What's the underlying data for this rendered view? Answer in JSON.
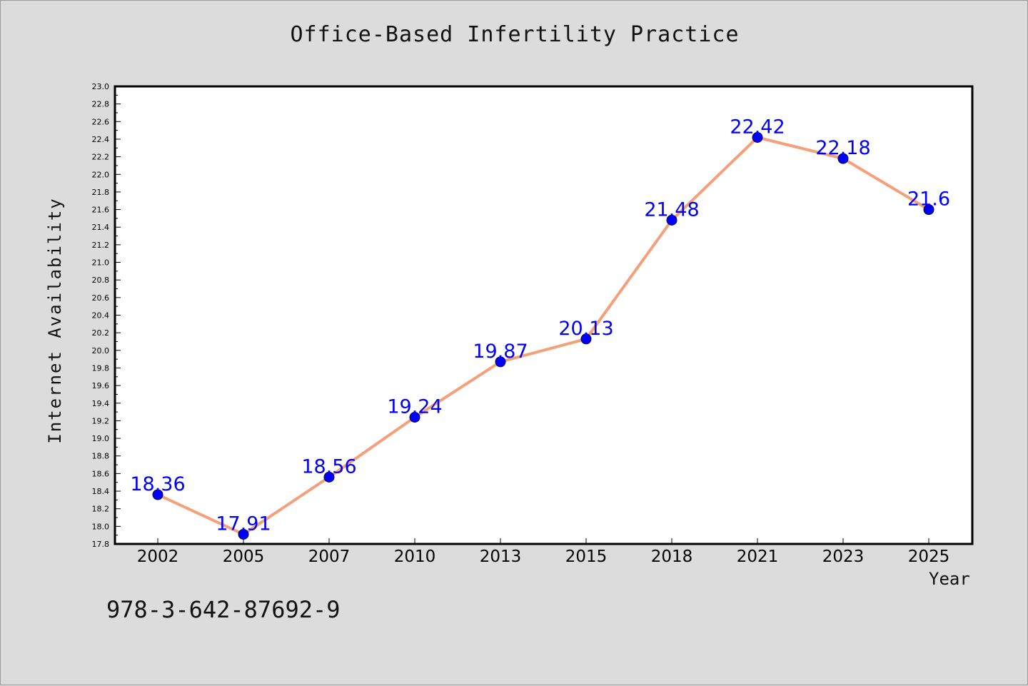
{
  "chart_data": {
    "type": "line",
    "title": "Office-Based Infertility Practice",
    "xlabel": "Year",
    "ylabel": "Internet Availability",
    "categories": [
      "2002",
      "2005",
      "2007",
      "2010",
      "2013",
      "2015",
      "2018",
      "2021",
      "2023",
      "2025"
    ],
    "series": [
      {
        "values": [
          18.36,
          17.91,
          18.56,
          19.24,
          19.87,
          20.13,
          21.48,
          22.42,
          22.18,
          21.6
        ],
        "data_labels": [
          "18.36",
          "17.91",
          "18.56",
          "19.24",
          "19.87",
          "20.13",
          "21.48",
          "22.42",
          "22.18",
          "21.6"
        ],
        "line_color": "#f4a07a",
        "marker_color": "#0000ff"
      }
    ],
    "ylim": [
      17.8,
      23.0
    ],
    "yticks": [
      "17.8",
      "18.0",
      "18.2",
      "18.4",
      "18.6",
      "18.8",
      "19.0",
      "19.2",
      "19.4",
      "19.6",
      "19.8",
      "20.0",
      "20.2",
      "20.4",
      "20.6",
      "20.8",
      "21.0",
      "21.2",
      "21.4",
      "21.6",
      "21.8",
      "22.0",
      "22.2",
      "22.4",
      "22.6",
      "22.8",
      "23.0"
    ],
    "grid": false,
    "label_color": "#0000ff",
    "plot_background": "#ffffff",
    "figure_background": "#dcdcdc"
  },
  "footer": {
    "isbn": "978-3-642-87692-9"
  }
}
